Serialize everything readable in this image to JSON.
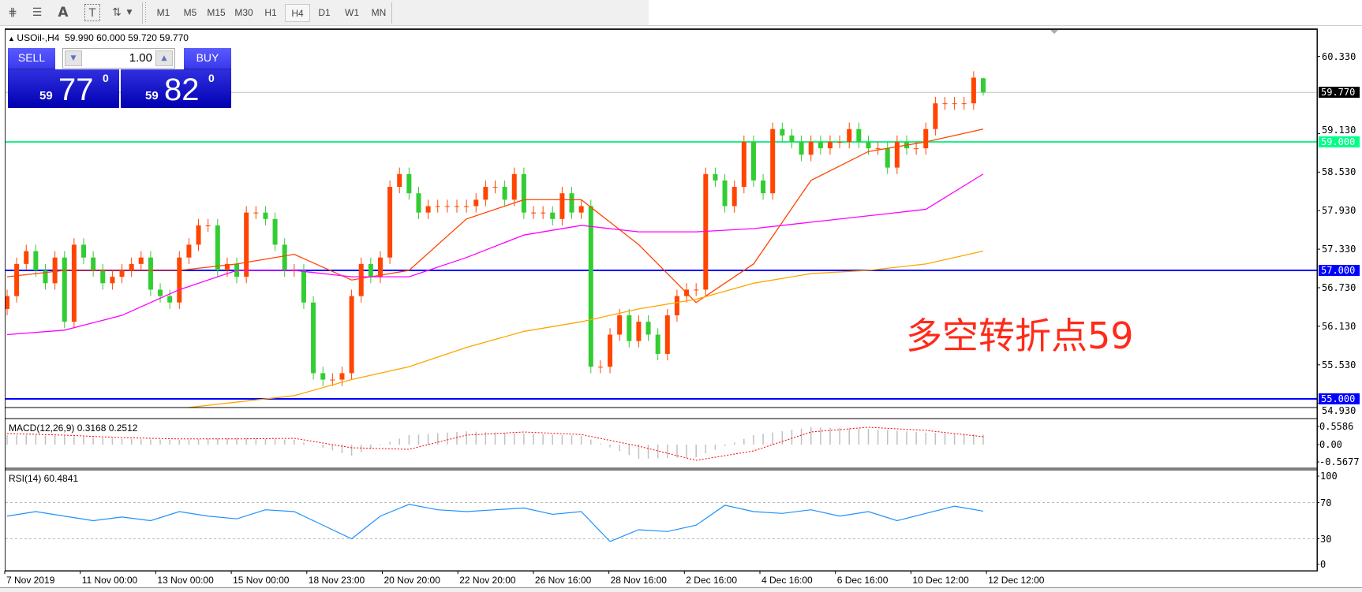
{
  "toolbar": {
    "icons": [
      "fibonacci-expansion-icon",
      "fibonacci-fan-icon",
      "text-icon",
      "text-label-icon",
      "arrows-icon"
    ],
    "timeframes": [
      "M1",
      "M5",
      "M15",
      "M30",
      "H1",
      "H4",
      "D1",
      "W1",
      "MN"
    ],
    "selected_timeframe": "H4"
  },
  "chart": {
    "symbol_header": "USOil-,H4  59.990 60.000 59.720 59.770",
    "trade_panel": {
      "sell_label": "SELL",
      "buy_label": "BUY",
      "lot": "1.00",
      "sell_big": "59",
      "sell_main": "77",
      "sell_sup": "0",
      "buy_big": "59",
      "buy_main": "82",
      "buy_sup": "0"
    },
    "price_axis": [
      "60.330",
      "59.130",
      "58.530",
      "57.930",
      "57.330",
      "56.730",
      "56.130",
      "55.530",
      "54.930"
    ],
    "price_tags": [
      {
        "label": "59.770",
        "value": 59.77,
        "bg": "#000000",
        "fg": "#ffffff",
        "line": "#c0c0c0"
      },
      {
        "label": "59.000",
        "value": 59.0,
        "bg": "#00ff88",
        "fg": "#ffffff",
        "line": "#22ee88"
      },
      {
        "label": "57.000",
        "value": 57.0,
        "bg": "#0000ff",
        "fg": "#ffffff",
        "line": "#0000ff"
      },
      {
        "label": "55.000",
        "value": 55.0,
        "bg": "#0000ff",
        "fg": "#ffffff",
        "line": "#0000ff"
      }
    ],
    "annotation": "多空转折点59",
    "annotation_color": "#ff2a1a",
    "time_axis": [
      "7 Nov 2019",
      "11 Nov 00:00",
      "13 Nov 00:00",
      "15 Nov 00:00",
      "18 Nov 23:00",
      "20 Nov 20:00",
      "22 Nov 20:00",
      "26 Nov 16:00",
      "28 Nov 16:00",
      "2 Dec 16:00",
      "4 Dec 16:00",
      "6 Dec 16:00",
      "10 Dec 12:00",
      "12 Dec 12:00"
    ]
  },
  "chart_data": {
    "type": "candlestick",
    "symbol": "USOil-",
    "timeframe": "H4",
    "last_ohlc": {
      "open": 59.99,
      "high": 60.0,
      "low": 59.72,
      "close": 59.77
    },
    "ylim": [
      54.93,
      60.52
    ],
    "colors": {
      "bull": "#ff4500",
      "bear": "#32cd32",
      "ma_fast": "#ff4500",
      "ma_mid": "#ff00ff",
      "ma_slow": "#ffa500"
    },
    "closes": [
      56.6,
      57.1,
      57.3,
      57.0,
      56.8,
      57.2,
      56.2,
      57.4,
      57.2,
      57.0,
      56.8,
      56.9,
      57.0,
      57.1,
      57.2,
      56.7,
      56.6,
      56.5,
      57.2,
      57.4,
      57.7,
      57.7,
      57.0,
      57.1,
      56.9,
      57.9,
      57.9,
      57.8,
      57.4,
      57.0,
      57.0,
      56.5,
      55.4,
      55.3,
      55.3,
      55.4,
      56.6,
      57.1,
      56.9,
      57.2,
      58.3,
      58.5,
      58.2,
      57.9,
      58.0,
      58.0,
      58.0,
      58.0,
      58.0,
      58.1,
      58.3,
      58.3,
      58.1,
      58.5,
      57.9,
      57.9,
      57.9,
      57.8,
      58.2,
      57.9,
      58.0,
      55.5,
      55.5,
      56.0,
      56.3,
      55.9,
      56.2,
      56.0,
      55.7,
      56.3,
      56.6,
      56.7,
      56.7,
      58.5,
      58.4,
      58.0,
      58.3,
      59.0,
      58.4,
      58.2,
      59.2,
      59.1,
      59.0,
      58.8,
      59.0,
      58.9,
      59.0,
      59.0,
      59.2,
      59.0,
      58.9,
      58.9,
      58.6,
      59.0,
      58.9,
      58.9,
      59.2,
      59.6,
      59.6,
      59.6,
      59.6,
      60.0,
      59.77
    ],
    "ma_fast": [
      56.9,
      57.0,
      57.0,
      57.0,
      57.1,
      57.25,
      56.85,
      57.0,
      57.8,
      58.1,
      58.1,
      57.4,
      56.5,
      57.1,
      58.4,
      58.85,
      59.0,
      59.2
    ],
    "ma_mid": [
      56.0,
      56.07,
      56.3,
      56.7,
      57.0,
      57.0,
      56.9,
      56.9,
      57.2,
      57.55,
      57.7,
      57.6,
      57.6,
      57.65,
      57.75,
      57.85,
      57.95,
      58.5
    ],
    "ma_slow": [
      null,
      null,
      null,
      54.85,
      54.95,
      55.05,
      55.3,
      55.5,
      55.8,
      56.05,
      56.2,
      56.4,
      56.55,
      56.8,
      56.95,
      57.0,
      57.1,
      57.3
    ],
    "macd": {
      "title": "MACD(12,26,9) 0.3168 0.2512",
      "axis": [
        "0.5586",
        "0.00",
        "-0.5677"
      ],
      "ylim": [
        -0.5677,
        0.5586
      ],
      "main": [
        0.3,
        0.28,
        0.18,
        0.15,
        0.22,
        0.15,
        -0.35,
        0.3,
        0.42,
        0.35,
        0.28,
        -0.45,
        -0.4,
        0.3,
        0.55,
        0.5,
        0.38,
        0.3168
      ],
      "signal": [
        0.35,
        0.3,
        0.22,
        0.18,
        0.18,
        0.2,
        -0.1,
        -0.15,
        0.3,
        0.4,
        0.32,
        -0.05,
        -0.5,
        -0.2,
        0.4,
        0.55,
        0.45,
        0.2512
      ],
      "hist_color": "#c0c0c0",
      "signal_color": "#ff0000"
    },
    "rsi": {
      "title": "RSI(14) 60.4841",
      "axis": [
        "100",
        "70",
        "30",
        "0"
      ],
      "levels": [
        70,
        30
      ],
      "color": "#1e90ff",
      "values": [
        55,
        60,
        55,
        50,
        54,
        50,
        60,
        55,
        52,
        62,
        60,
        45,
        30,
        55,
        68,
        62,
        60,
        62,
        64,
        57,
        60,
        27,
        40,
        38,
        45,
        67,
        60,
        58,
        62,
        55,
        60,
        50,
        58,
        66,
        60.48
      ]
    }
  }
}
